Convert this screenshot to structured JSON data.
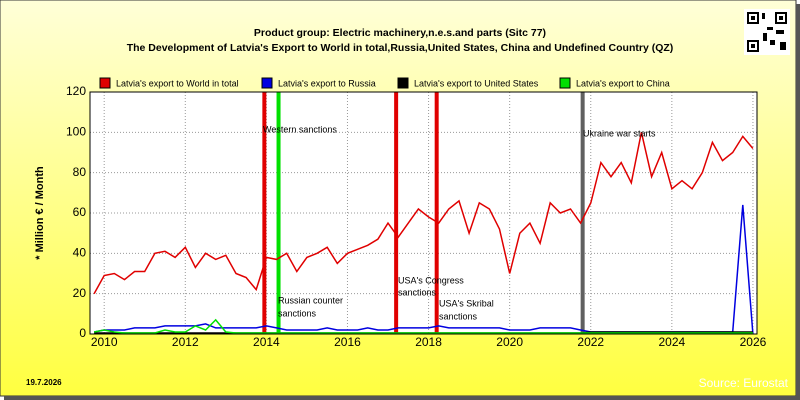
{
  "chart_data": {
    "type": "line",
    "title": [
      "Product group: Electric machinery,n.e.s.and parts (Sitc 77)",
      "The Development of Latvia's Export to World in total,Russia,United States, China and Undefined Country (QZ)"
    ],
    "y_label": "* Million € / Month",
    "date": "19.7.2026",
    "source": "Source: Eurostat",
    "xlim": [
      2009.65,
      2026.1
    ],
    "xticks": [
      2010,
      2012,
      2014,
      2016,
      2018,
      2020,
      2022,
      2024,
      2026
    ],
    "ylim": [
      0,
      120
    ],
    "yticks": [
      0,
      20,
      40,
      60,
      80,
      100,
      120
    ],
    "grid": true,
    "x": [
      2009.75,
      2010,
      2010.25,
      2010.5,
      2010.75,
      2011,
      2011.25,
      2011.5,
      2011.75,
      2012,
      2012.25,
      2012.5,
      2012.75,
      2013,
      2013.25,
      2013.5,
      2013.75,
      2014,
      2014.25,
      2014.5,
      2014.75,
      2015,
      2015.25,
      2015.5,
      2015.75,
      2016,
      2016.25,
      2016.5,
      2016.75,
      2017,
      2017.25,
      2017.5,
      2017.75,
      2018,
      2018.25,
      2018.5,
      2018.75,
      2019,
      2019.25,
      2019.5,
      2019.75,
      2020,
      2020.25,
      2020.5,
      2020.75,
      2021,
      2021.25,
      2021.5,
      2021.75,
      2022,
      2022.25,
      2022.5,
      2022.75,
      2023,
      2023.25,
      2023.5,
      2023.75,
      2024,
      2024.25,
      2024.5,
      2024.75,
      2025,
      2025.25,
      2025.5,
      2025.75,
      2026
    ],
    "series": [
      {
        "name": "Latvia's export to World in total",
        "color": "#e00000",
        "values": [
          20,
          29,
          30,
          27,
          31,
          31,
          40,
          41,
          38,
          43,
          33,
          40,
          37,
          39,
          30,
          28,
          22,
          38,
          37,
          40,
          31,
          38,
          40,
          43,
          35,
          40,
          42,
          44,
          47,
          55,
          48,
          55,
          62,
          58,
          55,
          62,
          66,
          50,
          65,
          62,
          52,
          30,
          50,
          55,
          45,
          65,
          60,
          62,
          55,
          65,
          85,
          78,
          85,
          75,
          100,
          78,
          90,
          72,
          76,
          72,
          80,
          95,
          86,
          90,
          98,
          92
        ]
      },
      {
        "name": "Latvia's export to Russia",
        "color": "#0000e0",
        "values": [
          1,
          2,
          2,
          2,
          3,
          3,
          3,
          4,
          4,
          4,
          4,
          5,
          3,
          3,
          3,
          3,
          3,
          4,
          3,
          2,
          2,
          2,
          2,
          3,
          2,
          2,
          2,
          3,
          2,
          2,
          3,
          3,
          3,
          3,
          4,
          3,
          3,
          3,
          3,
          3,
          3,
          2,
          2,
          2,
          3,
          3,
          3,
          3,
          2,
          1,
          1,
          1,
          1,
          1,
          1,
          1,
          1,
          1,
          1,
          1,
          1,
          1,
          1,
          1,
          64,
          0
        ]
      },
      {
        "name": "Latvia's export to United States",
        "color": "#000000",
        "values": [
          0.5,
          0.5,
          0.5,
          0.5,
          0.5,
          0.5,
          0.5,
          0.5,
          0.5,
          0.5,
          0.5,
          0.5,
          0.5,
          0.5,
          0.5,
          0.5,
          0.5,
          0.5,
          0.5,
          0.5,
          0.5,
          0.5,
          0.5,
          0.5,
          0.5,
          0.5,
          0.5,
          0.5,
          0.5,
          0.5,
          0.5,
          0.5,
          0.5,
          0.5,
          0.5,
          0.5,
          0.5,
          0.5,
          0.5,
          0.5,
          0.5,
          0.5,
          0.5,
          0.5,
          0.5,
          0.5,
          0.5,
          0.5,
          0.5,
          1,
          1,
          1,
          1,
          1,
          1,
          1,
          1,
          1,
          1,
          1,
          1,
          1,
          1,
          1,
          1,
          1
        ]
      },
      {
        "name": "Latvia's export to China",
        "color": "#00e000",
        "values": [
          1,
          2,
          1,
          0.5,
          0.5,
          0.5,
          0.5,
          2,
          1,
          1,
          4,
          2,
          7,
          1,
          0.5,
          0.5,
          0.5,
          0.5,
          0.5,
          0.5,
          0.5,
          0.5,
          0.5,
          0.5,
          0.5,
          0.5,
          0.5,
          0.5,
          0.5,
          0.5,
          0.5,
          0.5,
          0.5,
          0.5,
          0.5,
          0.5,
          0.5,
          0.5,
          0.5,
          0.5,
          0.5,
          0.5,
          0.5,
          0.5,
          0.5,
          0.5,
          0.5,
          0.5,
          0.5,
          0.5,
          0.5,
          0.5,
          0.5,
          0.5,
          0.5,
          0.5,
          0.5,
          0.5,
          0.5,
          0.5,
          0.5,
          0.5,
          0.5,
          0.5,
          0.5,
          0.5
        ]
      }
    ],
    "events": [
      {
        "x": 2013.95,
        "color": "#e00000",
        "label": [
          "Western sanctions"
        ]
      },
      {
        "x": 2014.3,
        "color": "#00e000",
        "label": [
          "Russian counter",
          "sanctions"
        ]
      },
      {
        "x": 2017.2,
        "color": "#e00000",
        "label": [
          "USA's Congress",
          "sanctions"
        ]
      },
      {
        "x": 2018.2,
        "color": "#e00000",
        "label": [
          "USA's Skribal",
          "sanctions"
        ]
      },
      {
        "x": 2021.8,
        "color": "#606060",
        "label": [
          "Ukraine war starts"
        ]
      }
    ]
  }
}
